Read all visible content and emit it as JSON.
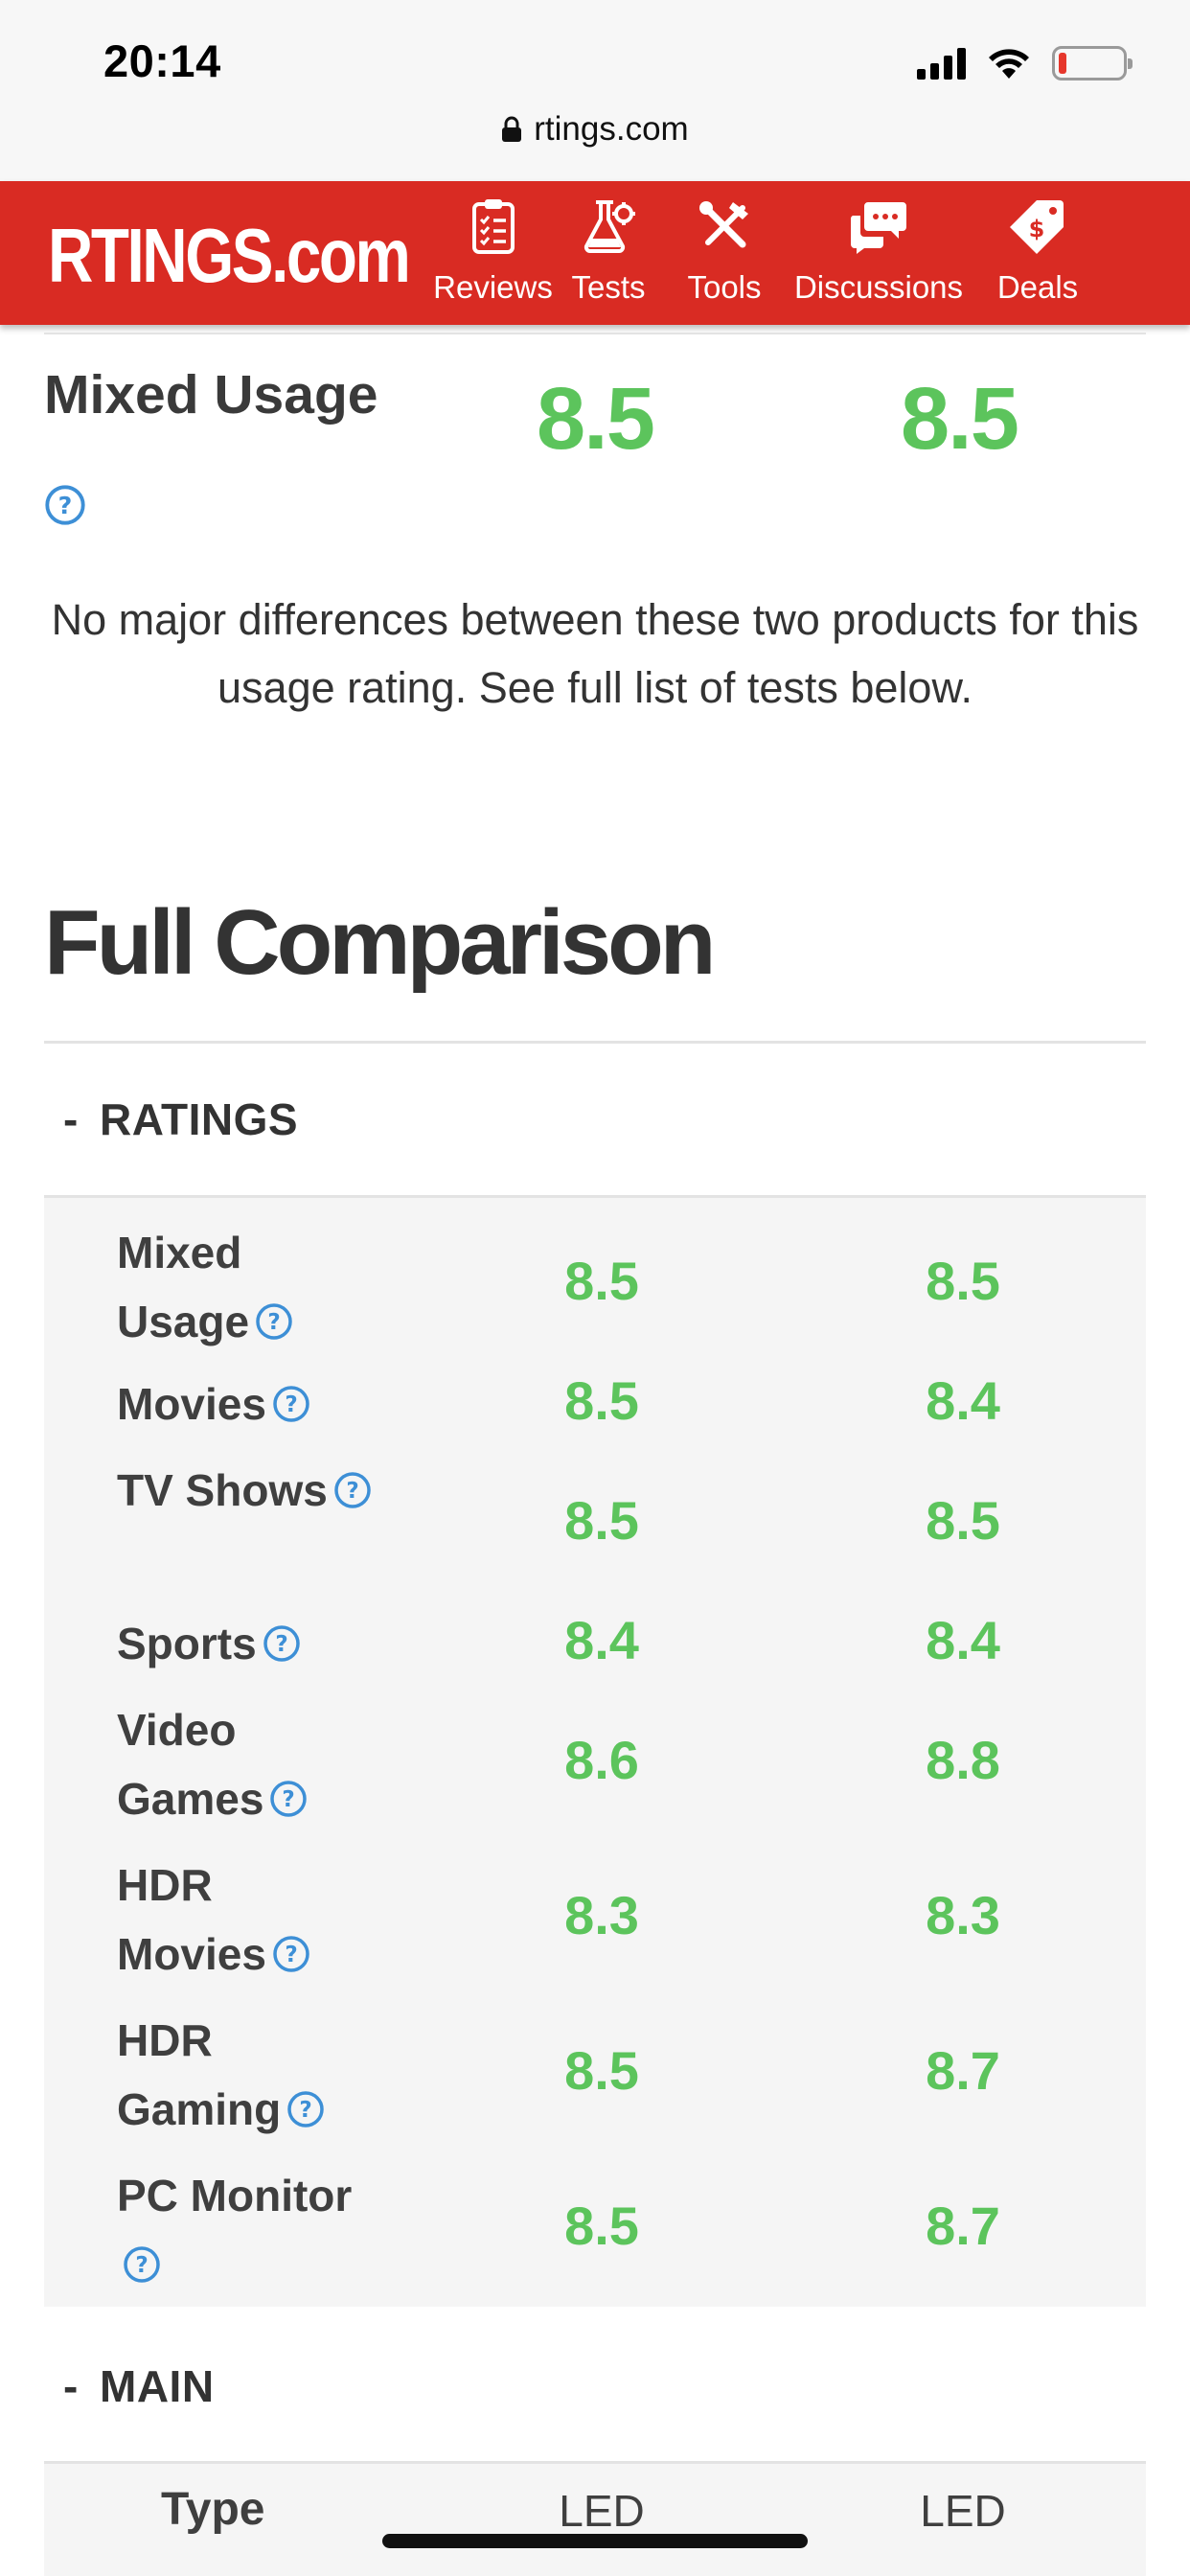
{
  "status_bar": {
    "time": "20:14"
  },
  "browser": {
    "url": "rtings.com"
  },
  "nav": {
    "logo": "RTINGS.com",
    "items": [
      {
        "label": "Reviews",
        "icon": "clipboard-icon"
      },
      {
        "label": "Tests",
        "icon": "flask-icon"
      },
      {
        "label": "Tools",
        "icon": "tools-icon"
      },
      {
        "label": "Discussions",
        "icon": "chat-icon"
      },
      {
        "label": "Deals",
        "icon": "price-tag-icon"
      }
    ]
  },
  "usage_score": {
    "label": "Mixed Usage",
    "value_a": "8.5",
    "value_b": "8.5"
  },
  "note": "No major differences between these two products for this usage rating. See full list of tests below.",
  "full_comparison": {
    "title": "Full Comparison",
    "ratings_header": "RATINGS",
    "collapse_symbol": "-",
    "ratings": [
      {
        "label": "Mixed Usage",
        "a": "8.5",
        "b": "8.5"
      },
      {
        "label": "Movies",
        "a": "8.5",
        "b": "8.4"
      },
      {
        "label": "TV Shows",
        "a": "8.5",
        "b": "8.5"
      },
      {
        "label": "Sports",
        "a": "8.4",
        "b": "8.4"
      },
      {
        "label": "Video Games",
        "a": "8.6",
        "b": "8.8"
      },
      {
        "label": "HDR Movies",
        "a": "8.3",
        "b": "8.3"
      },
      {
        "label": "HDR Gaming",
        "a": "8.5",
        "b": "8.7"
      },
      {
        "label": "PC Monitor",
        "a": "8.5",
        "b": "8.7"
      }
    ],
    "main_header": "MAIN",
    "main": [
      {
        "label": "Type",
        "a": "LED",
        "b": "LED"
      }
    ]
  },
  "colors": {
    "brand_red": "#d92b23",
    "score_green": "#5cc45c",
    "help_blue": "#3d8fd6"
  }
}
